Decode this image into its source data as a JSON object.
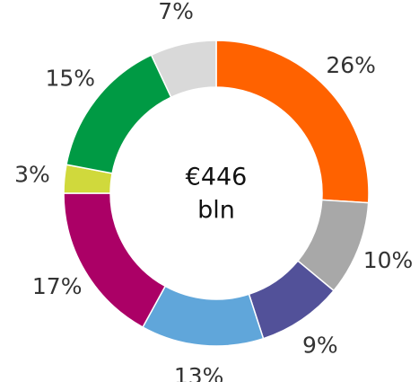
{
  "chart_data": {
    "type": "donut",
    "center_label": [
      "€446",
      "bln"
    ],
    "values": [
      26,
      10,
      9,
      13,
      17,
      3,
      15,
      7
    ],
    "value_labels": [
      "26%",
      "10%",
      "9%",
      "13%",
      "17%",
      "3%",
      "15%",
      "7%"
    ],
    "colors": [
      "#ff6200",
      "#a8a8a8",
      "#525199",
      "#60a6da",
      "#ab0066",
      "#d0d93c",
      "#009a44",
      "#d9d9d9"
    ]
  }
}
